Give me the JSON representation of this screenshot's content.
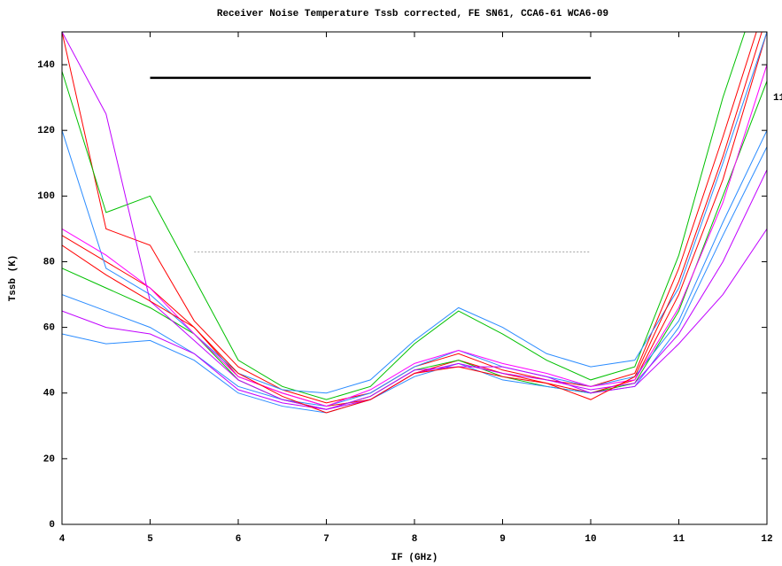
{
  "chart_data": {
    "type": "line",
    "title": "Receiver Noise Temperature Tssb corrected, FE SN61, CCA6-61 WCA6-09",
    "x_label": "IF (GHz)",
    "y_label": "Tssb (K)",
    "x": [
      4,
      4.5,
      5,
      5.5,
      6,
      6.5,
      7,
      7.5,
      8,
      8.5,
      9,
      9.5,
      10,
      10.5,
      11,
      11.5,
      12
    ],
    "series": [
      {
        "color": "#ff0000",
        "values": [
          88,
          80,
          72,
          60,
          45,
          40,
          36,
          38,
          46,
          50,
          46,
          43,
          40,
          44,
          70,
          105,
          150
        ]
      },
      {
        "color": "#ff0000",
        "values": [
          150,
          90,
          85,
          62,
          48,
          41,
          37,
          40,
          48,
          52,
          47,
          44,
          42,
          46,
          78,
          118,
          160
        ]
      },
      {
        "color": "#00c000",
        "values": [
          138,
          95,
          100,
          75,
          50,
          42,
          38,
          42,
          55,
          65,
          58,
          50,
          44,
          48,
          82,
          130,
          170
        ]
      },
      {
        "color": "#00c000",
        "values": [
          78,
          72,
          66,
          58,
          44,
          38,
          35,
          39,
          47,
          50,
          45,
          42,
          40,
          43,
          65,
          100,
          135
        ]
      },
      {
        "color": "#2b8cff",
        "values": [
          58,
          55,
          56,
          50,
          40,
          36,
          34,
          38,
          45,
          49,
          44,
          42,
          40,
          42,
          60,
          88,
          115
        ]
      },
      {
        "color": "#2b8cff",
        "values": [
          120,
          78,
          70,
          58,
          46,
          41,
          40,
          44,
          56,
          66,
          60,
          52,
          48,
          50,
          72,
          110,
          150
        ]
      },
      {
        "color": "#2b8cff",
        "values": [
          70,
          65,
          60,
          52,
          42,
          38,
          36,
          40,
          48,
          53,
          48,
          45,
          42,
          45,
          62,
          92,
          120
        ]
      },
      {
        "color": "#c000ff",
        "values": [
          150,
          125,
          68,
          56,
          44,
          38,
          35,
          38,
          46,
          49,
          46,
          44,
          41,
          43,
          58,
          80,
          108
        ]
      },
      {
        "color": "#c000ff",
        "values": [
          65,
          60,
          58,
          52,
          41,
          37,
          35,
          39,
          47,
          48,
          48,
          45,
          40,
          42,
          55,
          70,
          90
        ]
      },
      {
        "color": "#ff00ff",
        "values": [
          90,
          82,
          72,
          58,
          45,
          40,
          36,
          41,
          49,
          53,
          49,
          46,
          42,
          44,
          66,
          98,
          140
        ]
      },
      {
        "color": "#ff0000",
        "values": [
          85,
          76,
          68,
          60,
          46,
          39,
          34,
          38,
          46,
          48,
          45,
          43,
          38,
          45,
          74,
          112,
          155
        ]
      }
    ],
    "reference_lines": [
      {
        "x": [
          5,
          10
        ],
        "y": 136,
        "color": "#000000",
        "style": "solid"
      },
      {
        "x": [
          5.5,
          10
        ],
        "y": 83,
        "color": "#a0a0a0",
        "style": "dotted"
      }
    ],
    "annotation": "11",
    "xlim": [
      4,
      12
    ],
    "xticks": [
      4,
      5,
      6,
      7,
      8,
      9,
      10,
      11,
      12
    ],
    "ylim": [
      0,
      150
    ],
    "yticks": [
      0,
      20,
      40,
      60,
      80,
      100,
      120,
      140
    ]
  }
}
